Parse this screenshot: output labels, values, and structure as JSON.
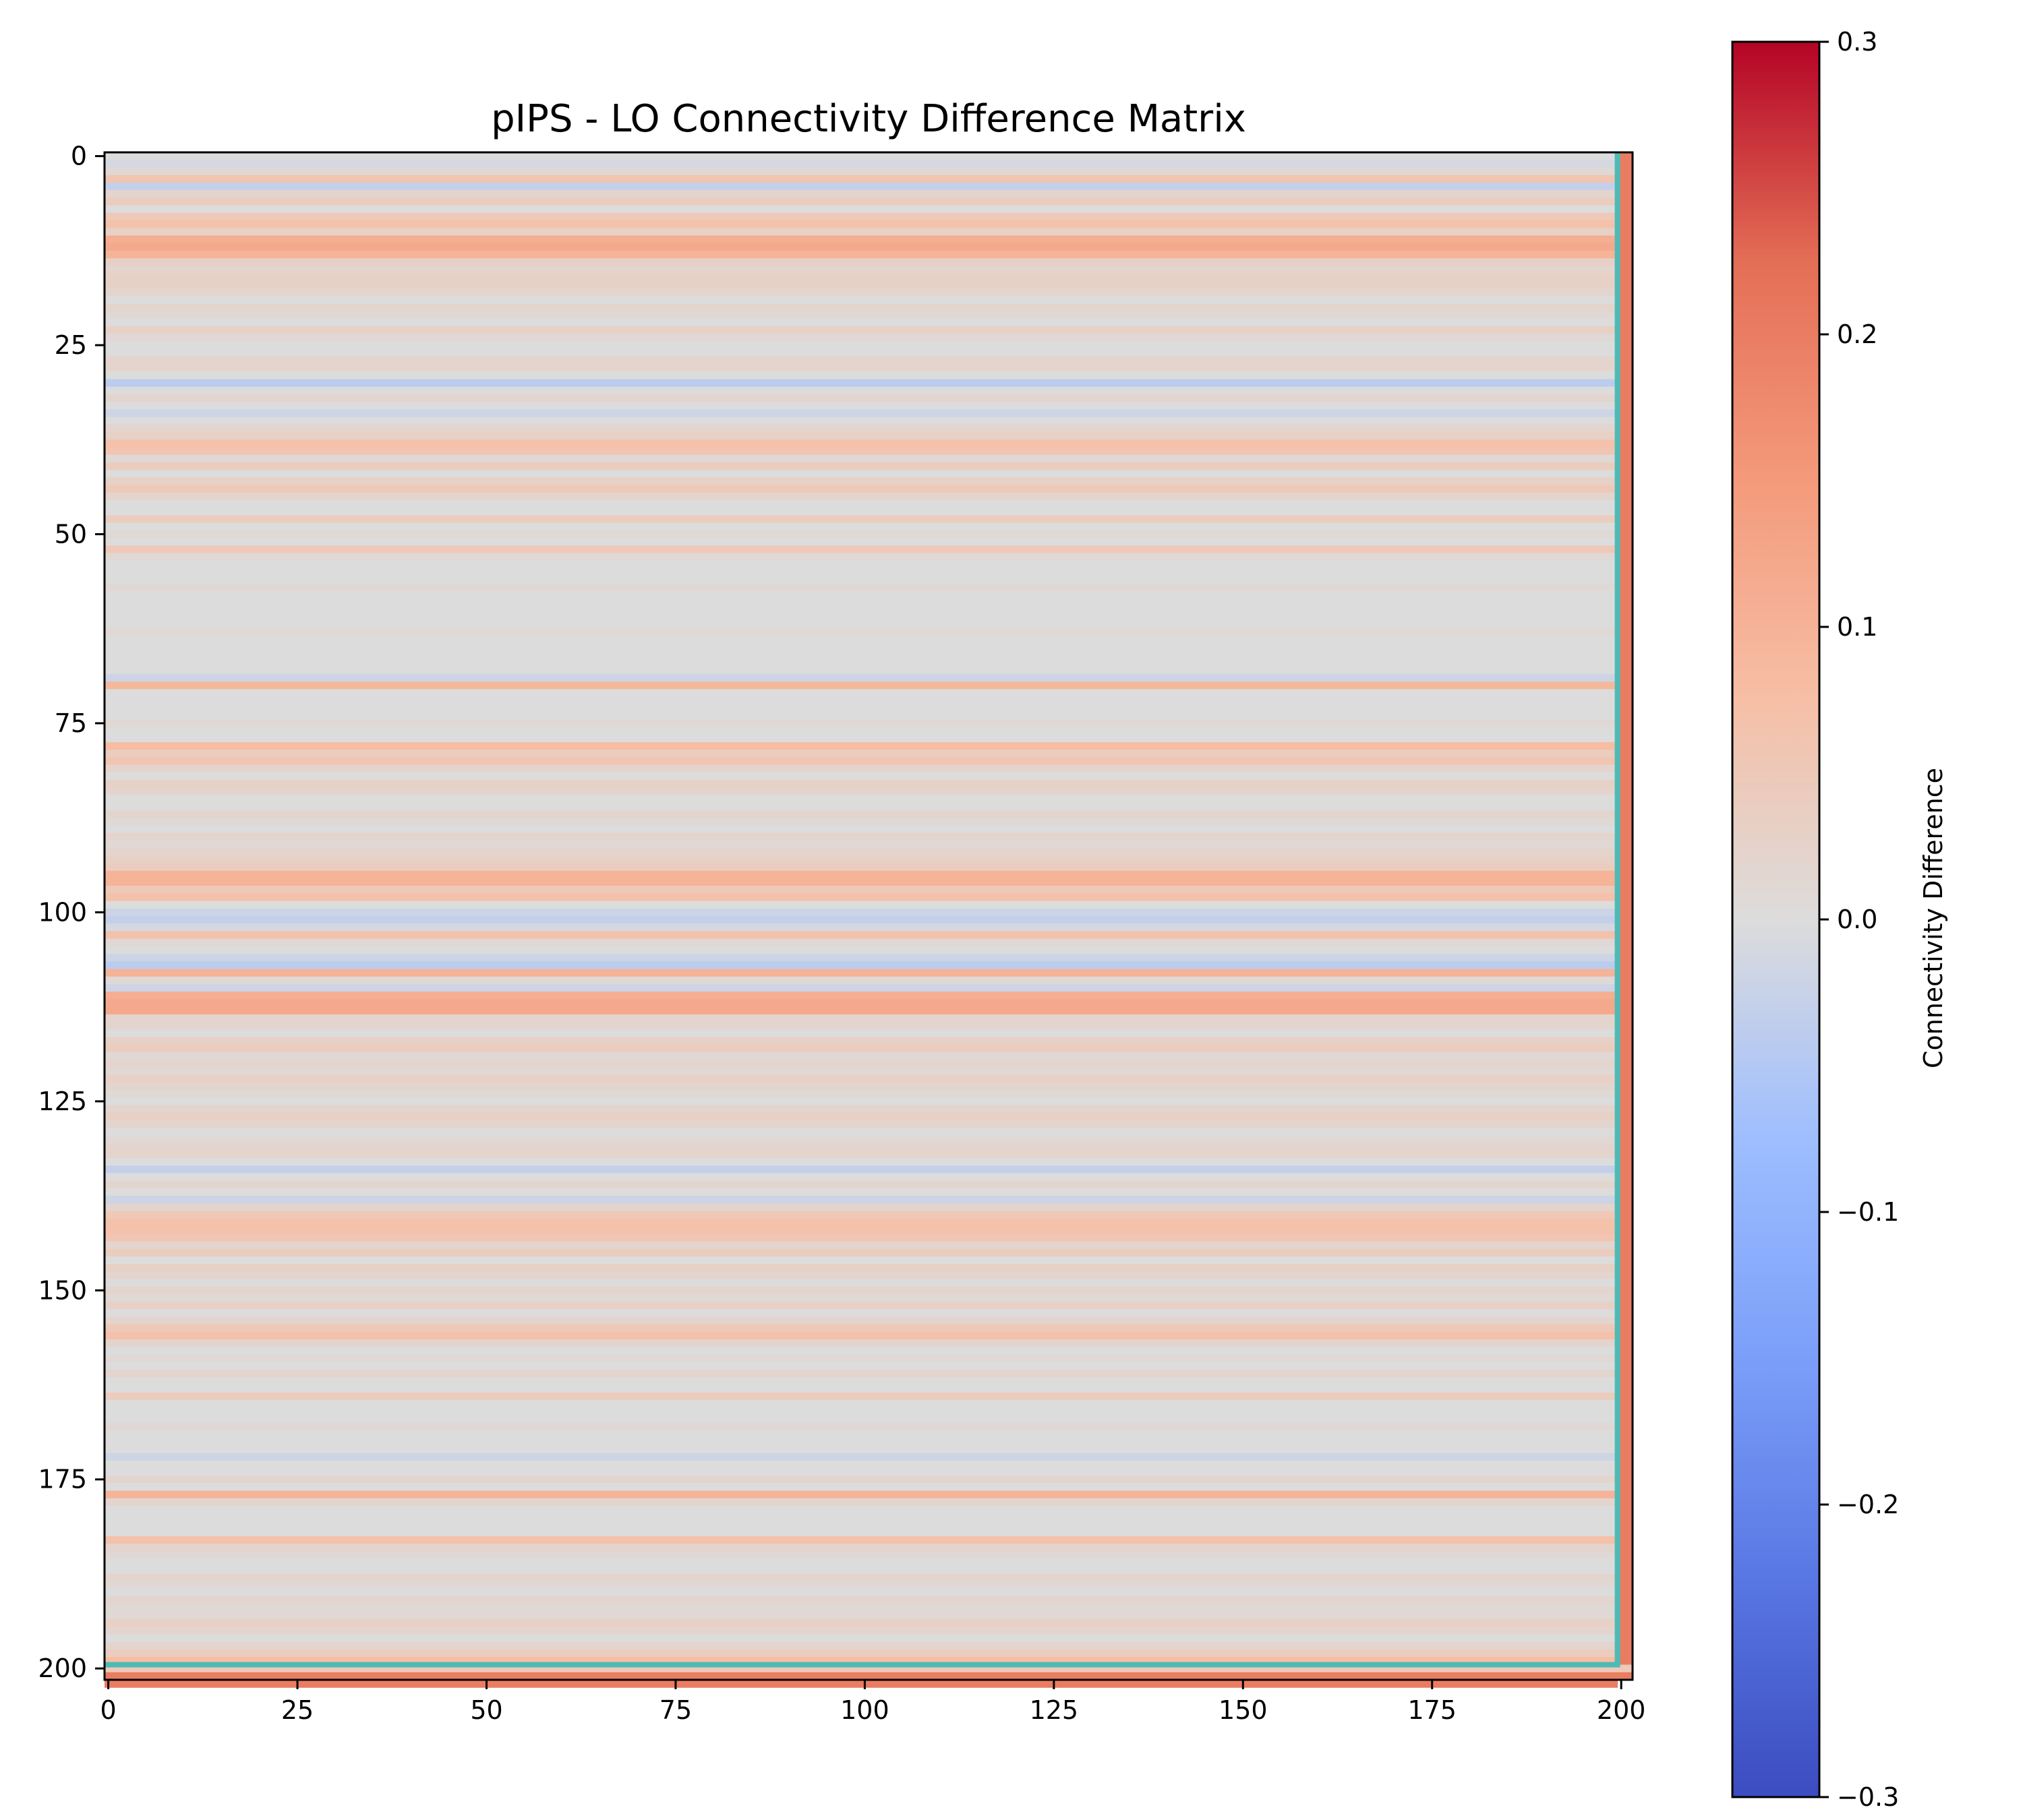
{
  "chart_data": {
    "type": "heatmap",
    "title": "pIPS - LO Connectivity Difference Matrix",
    "rows": 202,
    "cols": 202,
    "xlim": [
      -0.5,
      201.5
    ],
    "ylim": [
      201.5,
      -0.5
    ],
    "x_ticks": [
      "0",
      "25",
      "50",
      "75",
      "100",
      "125",
      "150",
      "175",
      "200"
    ],
    "x_tick_values": [
      0,
      25,
      50,
      75,
      100,
      125,
      150,
      175,
      200
    ],
    "y_ticks": [
      "0",
      "25",
      "50",
      "75",
      "100",
      "125",
      "150",
      "175",
      "200"
    ],
    "y_tick_values": [
      0,
      25,
      50,
      75,
      100,
      125,
      150,
      175,
      200
    ],
    "colormap": "coolwarm",
    "vmin": -0.3,
    "vmax": 0.3,
    "colorbar_label": "Connectivity Difference",
    "colorbar_ticks": [
      "0.3",
      "0.2",
      "0.1",
      "0.0",
      "−0.1",
      "−0.2",
      "−0.3"
    ],
    "colorbar_tick_values": [
      0.3,
      0.2,
      0.1,
      0.0,
      -0.1,
      -0.2,
      -0.3
    ],
    "row_values": [
      0.0,
      -0.01,
      0.01,
      0.06,
      -0.03,
      0.02,
      0.04,
      0.0,
      0.05,
      0.07,
      0.03,
      0.11,
      0.12,
      0.1,
      0.03,
      0.02,
      0.03,
      0.03,
      0.02,
      0.0,
      0.02,
      0.01,
      0.0,
      0.03,
      0.01,
      0.0,
      0.0,
      0.02,
      0.02,
      0.0,
      -0.04,
      0.0,
      0.02,
      0.0,
      -0.02,
      0.0,
      0.02,
      0.03,
      0.07,
      0.06,
      0.01,
      0.04,
      0.0,
      0.03,
      0.05,
      0.02,
      0.0,
      0.0,
      0.04,
      0.0,
      0.01,
      0.0,
      0.05,
      0.01,
      0.0,
      0.0,
      0.0,
      0.01,
      0.0,
      0.0,
      0.0,
      0.0,
      0.0,
      0.01,
      0.0,
      0.0,
      0.0,
      0.0,
      0.0,
      -0.02,
      0.09,
      0.0,
      0.0,
      0.0,
      0.0,
      0.01,
      0.0,
      0.0,
      0.08,
      0.04,
      0.06,
      0.02,
      0.0,
      0.03,
      0.02,
      0.0,
      0.0,
      0.02,
      0.01,
      0.0,
      0.02,
      0.01,
      0.02,
      0.03,
      0.04,
      0.1,
      0.1,
      0.05,
      0.07,
      0.0,
      -0.02,
      -0.03,
      -0.01,
      0.07,
      0.01,
      0.0,
      -0.02,
      -0.04,
      0.1,
      0.01,
      -0.02,
      0.11,
      0.12,
      0.12,
      0.02,
      0.02,
      0.0,
      0.03,
      0.04,
      0.01,
      0.02,
      0.01,
      0.03,
      0.02,
      0.01,
      0.0,
      0.02,
      0.03,
      0.02,
      0.0,
      0.01,
      0.02,
      0.02,
      0.0,
      -0.03,
      0.0,
      0.02,
      0.0,
      -0.02,
      0.02,
      0.05,
      0.07,
      0.07,
      0.06,
      0.02,
      0.04,
      0.0,
      0.03,
      0.02,
      0.0,
      0.02,
      0.01,
      0.03,
      0.0,
      0.02,
      0.05,
      0.07,
      0.02,
      0.0,
      0.01,
      0.0,
      0.02,
      0.0,
      0.0,
      0.04,
      0.0,
      0.0,
      0.0,
      0.01,
      0.0,
      0.0,
      0.0,
      -0.02,
      0.0,
      0.0,
      0.02,
      0.0,
      0.1,
      0.02,
      0.0,
      0.0,
      0.0,
      0.0,
      0.07,
      0.02,
      0.01,
      0.0,
      0.0,
      0.02,
      0.01,
      0.0,
      0.02,
      0.01,
      0.01,
      0.03,
      0.02,
      0.0,
      0.02,
      0.04,
      0.08,
      0.05,
      0.2,
      0.2
    ],
    "col_200_value": 0.2
  }
}
